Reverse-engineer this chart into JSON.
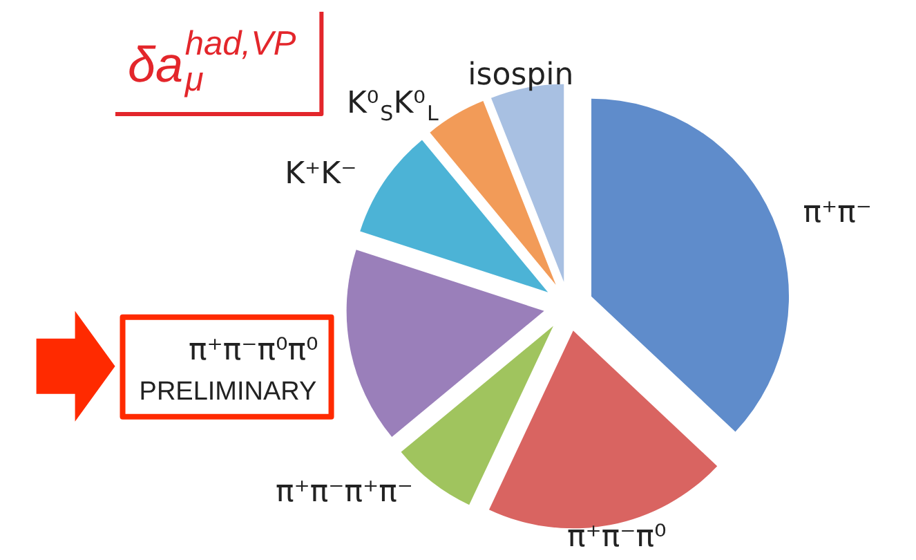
{
  "chart_data": {
    "type": "pie",
    "title": "δa$_{μ}$$^{had,VP}$",
    "categories": [
      "π⁺π⁻",
      "π⁺π⁻π⁰",
      "π⁺π⁻π⁺π⁻",
      "π⁺π⁻π⁰π⁰",
      "K⁺K⁻",
      "K⁰$_{S}$K⁰$_{L}$",
      "isospin"
    ],
    "values": [
      37,
      20,
      7,
      16,
      9,
      5,
      6
    ],
    "colors": [
      "#5f8ccb",
      "#d96461",
      "#a0c45e",
      "#9a7fba",
      "#4cb3d6",
      "#f29b58",
      "#a8c0e2"
    ],
    "annotations": [
      {
        "text": "PRELIMINARY",
        "x": "π⁺π⁻π⁰π⁰"
      }
    ]
  }
}
